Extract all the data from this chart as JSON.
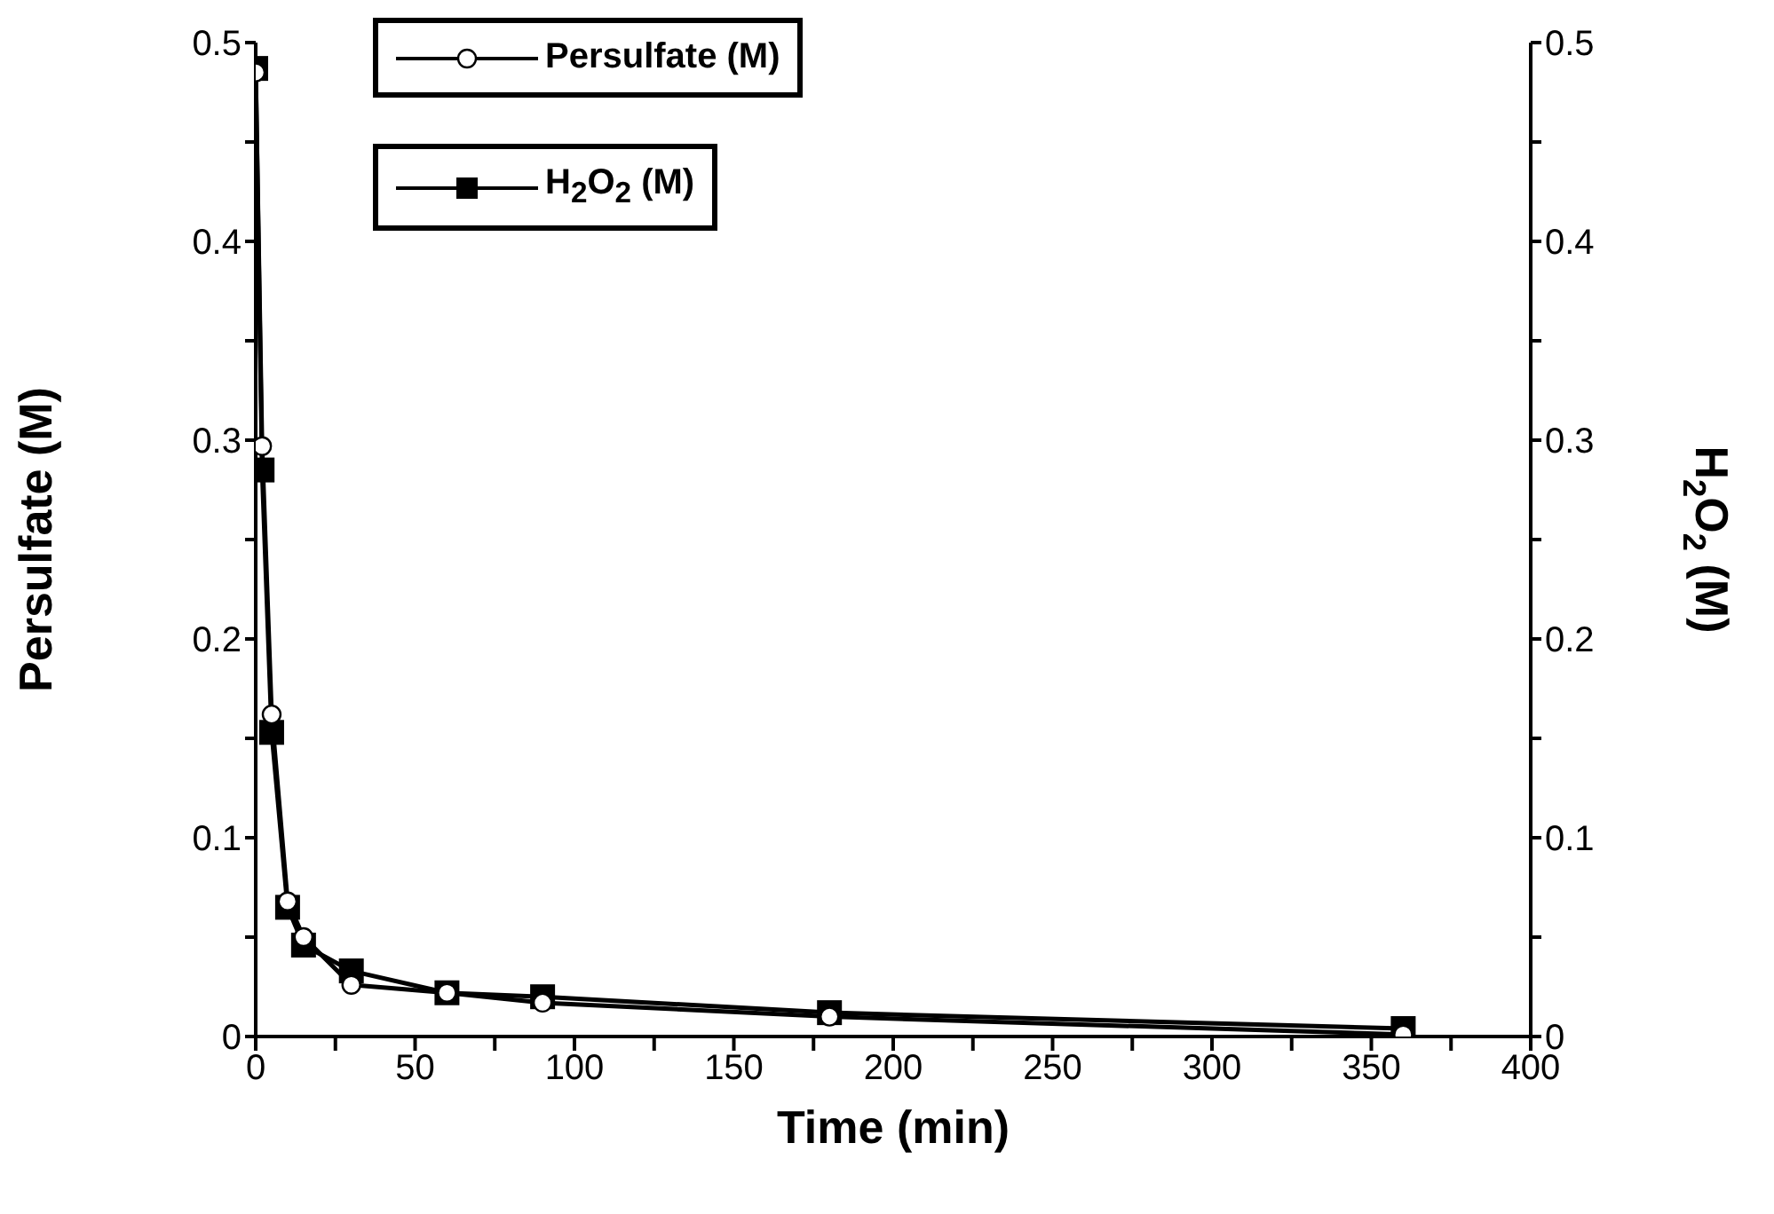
{
  "chart_data": {
    "type": "line",
    "xlabel": "Time (min)",
    "ylabel": "Persulfate (M)",
    "y2label": "H$_{2}$O$_{2}$ (M)",
    "x": [
      0,
      2,
      5,
      10,
      15,
      30,
      60,
      90,
      180,
      360
    ],
    "series": [
      {
        "name": "Persulfate (M)",
        "color": "#000000",
        "marker": "circle",
        "values": [
          0.485,
          0.297,
          0.162,
          0.068,
          0.05,
          0.026,
          0.022,
          0.017,
          0.01,
          0.001
        ]
      },
      {
        "name": "H$_{2}$O$_{2}$ (M)",
        "color": "#000000",
        "marker": "square",
        "axis": "y2",
        "values": [
          0.487,
          0.285,
          0.153,
          0.065,
          0.046,
          0.033,
          0.022,
          0.02,
          0.012,
          0.004
        ]
      }
    ],
    "xlim": [
      0,
      400
    ],
    "xticks": [
      0,
      {
        "value": 25,
        "label": null
      },
      50,
      {
        "value": 75,
        "label": null
      },
      100,
      {
        "value": 125,
        "label": null
      },
      150,
      {
        "value": 175,
        "label": null
      },
      200,
      {
        "value": 225,
        "label": null
      },
      250,
      {
        "value": 275,
        "label": null
      },
      300,
      {
        "value": 325,
        "label": null
      },
      350,
      {
        "value": 375,
        "label": null
      },
      400
    ],
    "ylim": [
      0,
      0.5
    ],
    "yticks": [
      0,
      {
        "value": 0.05,
        "label": null
      },
      0.1,
      {
        "value": 0.15,
        "label": null
      },
      0.2,
      {
        "value": 0.25,
        "label": null
      },
      0.3,
      {
        "value": 0.35,
        "label": null
      },
      0.4,
      {
        "value": 0.45,
        "label": null
      },
      0.5
    ],
    "y2lim": [
      0,
      0.5
    ],
    "y2ticks": [
      0,
      {
        "value": 0.05,
        "label": null
      },
      0.1,
      {
        "value": 0.15,
        "label": null
      },
      0.2,
      {
        "value": 0.25,
        "label": null
      },
      0.3,
      {
        "value": 0.35,
        "label": null
      },
      0.4,
      {
        "value": 0.45,
        "label": null
      },
      0.5
    ],
    "legend": "top left",
    "grid": false,
    "line_style": "solid"
  }
}
